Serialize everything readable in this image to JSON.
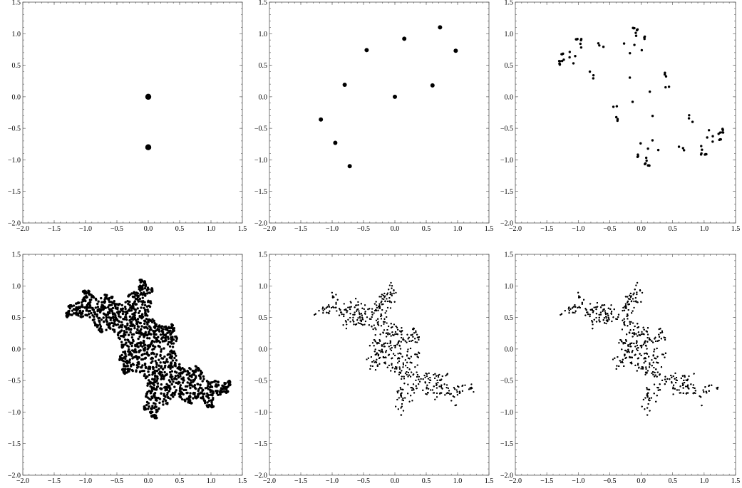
{
  "chart_data": [
    {
      "type": "scatter",
      "panel": 1,
      "xlim": [
        -2.0,
        1.5
      ],
      "ylim": [
        -2.0,
        1.5
      ],
      "x_ticks": [
        "−2.0",
        "−1.5",
        "−1.0",
        "−0.5",
        "0.0",
        "0.5",
        "1.0",
        "1.5"
      ],
      "y_ticks": [
        "−2.0",
        "−1.5",
        "−1.0",
        "−0.5",
        "0.0",
        "0.5",
        "1.0",
        "1.5"
      ],
      "grid": false,
      "marker": "large-dot",
      "points": [
        [
          0.0,
          0.0
        ],
        [
          0.0,
          -0.8
        ]
      ]
    },
    {
      "type": "scatter",
      "panel": 2,
      "xlim": [
        -2.0,
        1.5
      ],
      "ylim": [
        -2.0,
        1.5
      ],
      "x_ticks": [
        "−2.0",
        "−1.5",
        "−1.0",
        "−0.5",
        "0.0",
        "0.5",
        "1.0",
        "1.5"
      ],
      "y_ticks": [
        "−2.0",
        "−1.5",
        "−1.0",
        "−0.5",
        "0.0",
        "0.5",
        "1.0",
        "1.5"
      ],
      "grid": false,
      "marker": "medium-dot",
      "points": [
        [
          0.0,
          0.0
        ],
        [
          0.15,
          0.92
        ],
        [
          0.72,
          1.1
        ],
        [
          0.97,
          0.73
        ],
        [
          0.6,
          0.18
        ],
        [
          -0.45,
          0.74
        ],
        [
          -0.8,
          0.19
        ],
        [
          -1.18,
          -0.36
        ],
        [
          -0.95,
          -0.73
        ],
        [
          -0.72,
          -1.1
        ]
      ]
    },
    {
      "type": "scatter",
      "panel": 3,
      "xlim": [
        -2.0,
        1.5
      ],
      "ylim": [
        -2.0,
        1.5
      ],
      "x_ticks": [
        "−2.0",
        "−1.5",
        "−1.0",
        "−0.5",
        "0.0",
        "0.5",
        "1.0",
        "1.5"
      ],
      "y_ticks": [
        "−2.0",
        "−1.5",
        "−1.0",
        "−0.5",
        "0.0",
        "0.5",
        "1.0",
        "1.5"
      ],
      "grid": false,
      "marker": "small-dot",
      "description_level": "iteration 3 of Julia set filled orbit"
    },
    {
      "type": "scatter",
      "panel": 4,
      "xlim": [
        -2.0,
        1.5
      ],
      "ylim": [
        -2.0,
        1.5
      ],
      "x_ticks": [
        "−2.0",
        "−1.5",
        "−1.0",
        "−0.5",
        "0.0",
        "0.5",
        "1.0",
        "1.5"
      ],
      "y_ticks": [
        "−2.0",
        "−1.5",
        "−1.0",
        "−0.5",
        "0.0",
        "0.5",
        "1.0",
        "1.5"
      ],
      "grid": false,
      "marker": "small-dot"
    },
    {
      "type": "scatter",
      "panel": 5,
      "xlim": [
        -2.0,
        1.5
      ],
      "ylim": [
        -2.0,
        1.5
      ],
      "x_ticks": [
        "−2.0",
        "−1.5",
        "−1.0",
        "−0.5",
        "0.0",
        "0.5",
        "1.0",
        "1.5"
      ],
      "y_ticks": [
        "−2.0",
        "−1.5",
        "−1.0",
        "−0.5",
        "0.0",
        "0.5",
        "1.0",
        "1.5"
      ],
      "grid": false,
      "marker": "tiny-dot"
    },
    {
      "type": "scatter",
      "panel": 6,
      "xlim": [
        -2.0,
        1.5
      ],
      "ylim": [
        -2.0,
        1.5
      ],
      "x_ticks": [
        "−2.0",
        "−1.5",
        "−1.0",
        "−0.5",
        "0.0",
        "0.5",
        "1.0",
        "1.5"
      ],
      "y_ticks": [
        "−2.0",
        "−1.5",
        "−1.0",
        "−0.5",
        "0.0",
        "0.5",
        "1.0",
        "1.5"
      ],
      "grid": false,
      "marker": "tiny-dot"
    }
  ]
}
